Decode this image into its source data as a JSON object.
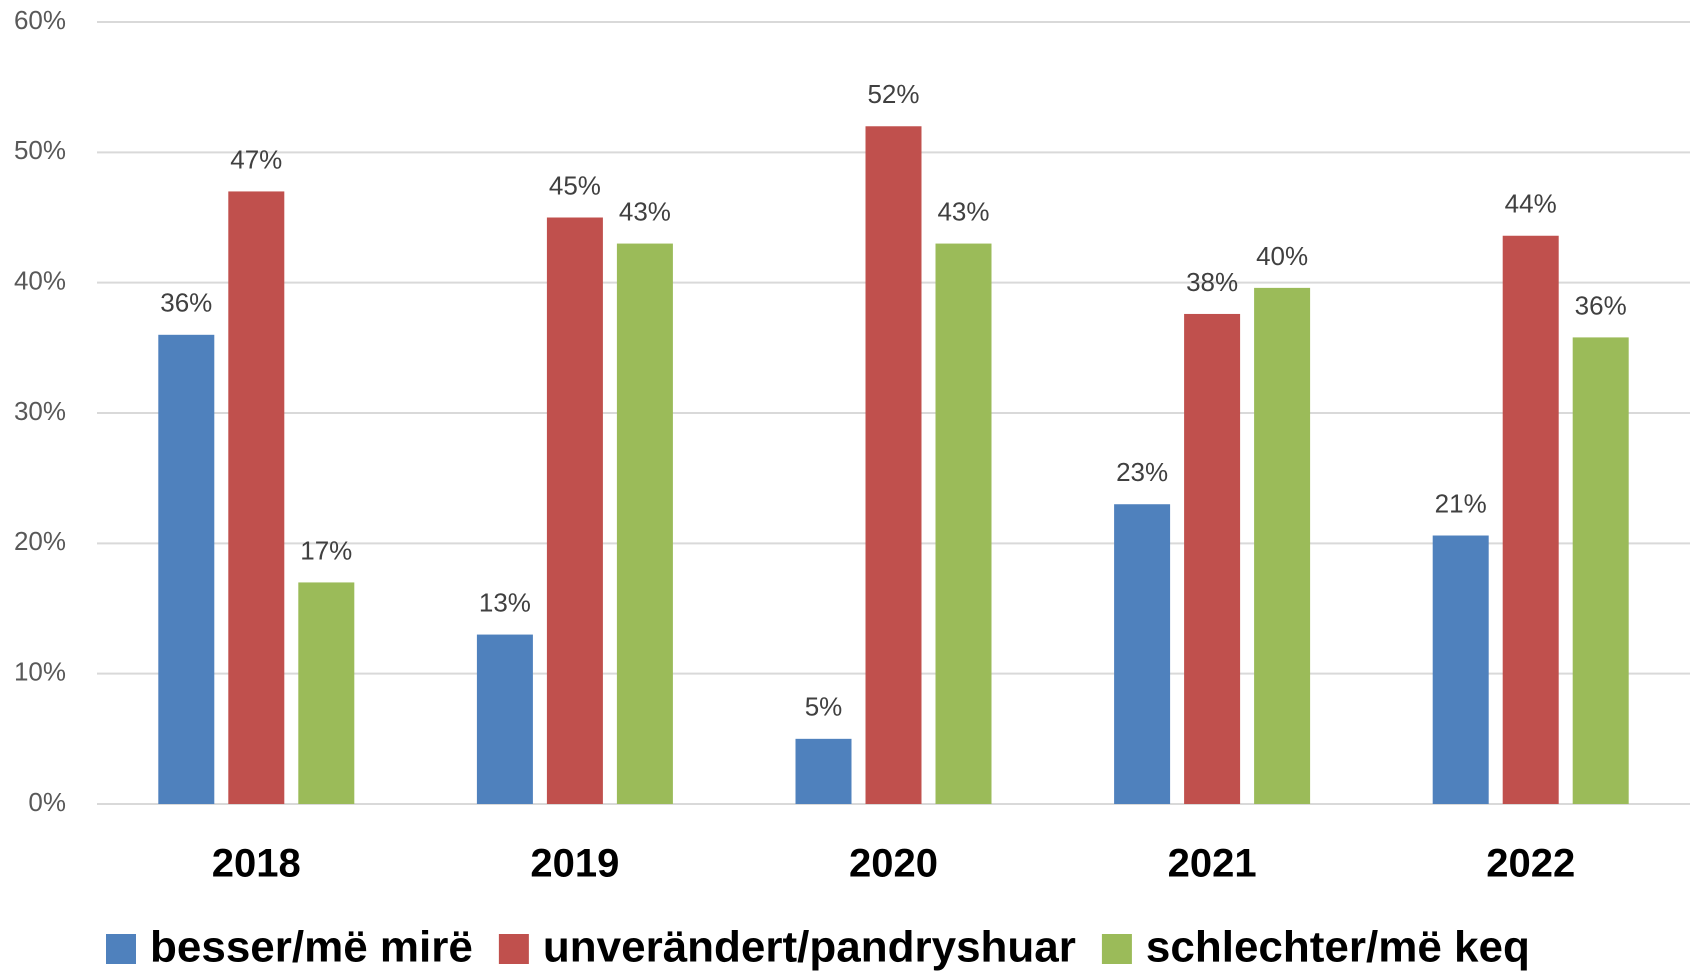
{
  "chart_data": {
    "type": "bar",
    "categories": [
      "2018",
      "2019",
      "2020",
      "2021",
      "2022"
    ],
    "series": [
      {
        "name": "besser/më mirë",
        "color": "#4f81bd",
        "values": [
          36,
          13,
          5,
          23,
          20.6
        ],
        "value_labels": [
          "36%",
          "13%",
          "5%",
          "23%",
          "21%"
        ]
      },
      {
        "name": "unverändert/pandryshuar",
        "color": "#c0504d",
        "values": [
          47,
          45,
          52,
          37.6,
          43.6
        ],
        "value_labels": [
          "47%",
          "45%",
          "52%",
          "38%",
          "44%"
        ]
      },
      {
        "name": "schlechter/më keq",
        "color": "#9bbb59",
        "values": [
          17,
          43,
          43,
          39.6,
          35.8
        ],
        "value_labels": [
          "17%",
          "43%",
          "43%",
          "40%",
          "36%"
        ]
      }
    ],
    "ylim": [
      0,
      60
    ],
    "yticks": [
      {
        "value": 0,
        "label": "0%"
      },
      {
        "value": 10,
        "label": "10%"
      },
      {
        "value": 20,
        "label": "20%"
      },
      {
        "value": 30,
        "label": "30%"
      },
      {
        "value": 40,
        "label": "40%"
      },
      {
        "value": 50,
        "label": "50%"
      },
      {
        "value": 60,
        "label": "60%"
      }
    ],
    "grid": true,
    "legend": "bottom"
  }
}
